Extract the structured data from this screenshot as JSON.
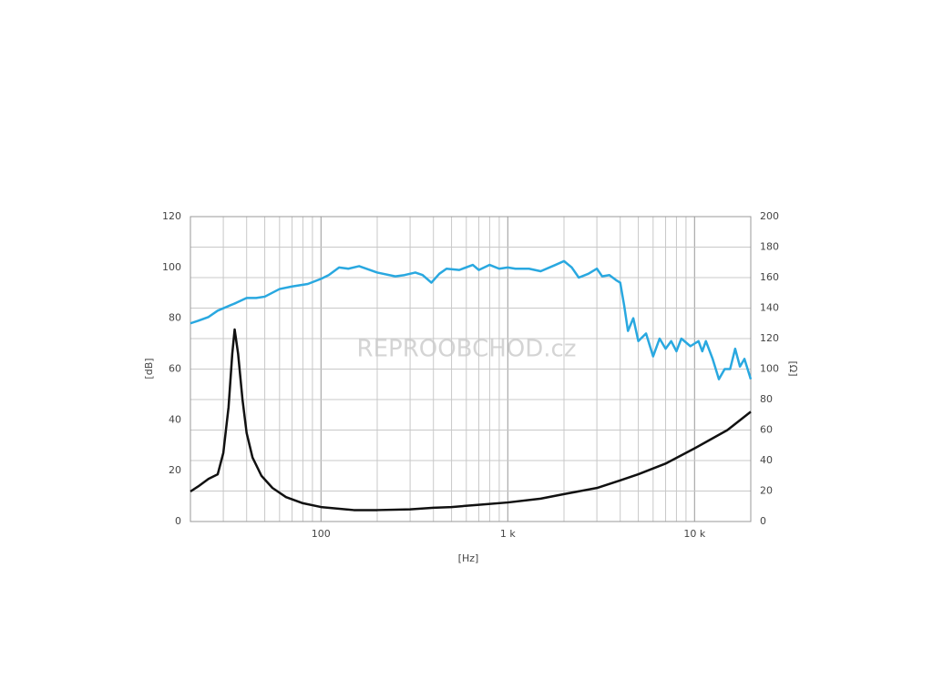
{
  "chart_data": {
    "type": "line",
    "log_x": true,
    "grid": true,
    "xlabel": "[Hz]",
    "ylabel": "[dB]",
    "y2label": "[Ω]",
    "watermark": "REPROOBCHOD.cz",
    "xlim": [
      20,
      20000
    ],
    "xticks": [
      100,
      {
        "value": 1000,
        "label": "1 k"
      },
      {
        "value": 10000,
        "label": "10 k"
      }
    ],
    "minor_xticks": [
      20,
      30,
      40,
      50,
      60,
      70,
      80,
      90,
      200,
      300,
      400,
      500,
      600,
      700,
      800,
      900,
      2000,
      3000,
      4000,
      5000,
      6000,
      7000,
      8000,
      9000
    ],
    "ylim": [
      0,
      120
    ],
    "yticks": [
      0,
      20,
      40,
      60,
      80,
      100,
      120
    ],
    "y2lim": [
      0,
      200
    ],
    "y2ticks": [
      0,
      20,
      40,
      60,
      80,
      100,
      120,
      140,
      160,
      180,
      200
    ],
    "series": [
      {
        "color": "#29a8e0",
        "axis": "y",
        "x": [
          20,
          22,
          25,
          28,
          35,
          40,
          45,
          50,
          60,
          70,
          85,
          100,
          110,
          125,
          140,
          160,
          200,
          250,
          280,
          320,
          350,
          390,
          430,
          470,
          550,
          650,
          700,
          800,
          900,
          1000,
          1100,
          1300,
          1500,
          1800,
          2000,
          2200,
          2400,
          2700,
          3000,
          3200,
          3500,
          3800,
          4000,
          4200,
          4400,
          4700,
          5000,
          5500,
          6000,
          6500,
          7000,
          7500,
          8000,
          8500,
          9500,
          10500,
          11000,
          11500,
          12500,
          13500,
          14500,
          15500,
          16500,
          17500,
          18500,
          20000
        ],
        "values": [
          78,
          79,
          80.5,
          83,
          86,
          88,
          88,
          88.5,
          91.5,
          92.5,
          93.5,
          95.5,
          97,
          100,
          99.5,
          100.5,
          98,
          96.5,
          97,
          98,
          97,
          94,
          97.5,
          99.5,
          99,
          101,
          99,
          101,
          99.5,
          100,
          99.5,
          99.5,
          98.5,
          101,
          102.5,
          100,
          96,
          97.5,
          99.5,
          96.5,
          97,
          95,
          94,
          85,
          75,
          80,
          71,
          74,
          65,
          72,
          68,
          71,
          67,
          72,
          69,
          71,
          67,
          71,
          64,
          56,
          60,
          60,
          68,
          61,
          64,
          56
        ]
      },
      {
        "color": "#111111",
        "axis": "y2",
        "x": [
          20,
          22,
          25,
          28,
          30,
          32,
          33.5,
          34.5,
          36,
          38,
          40,
          43,
          48,
          55,
          65,
          80,
          100,
          150,
          200,
          300,
          400,
          500,
          700,
          1000,
          1500,
          2000,
          3000,
          4000,
          5000,
          7000,
          10000,
          15000,
          20000
        ],
        "values": [
          19.7,
          23,
          28,
          31,
          45,
          75,
          110,
          126,
          110,
          80,
          58,
          42,
          30,
          22,
          16,
          12,
          9.5,
          7.5,
          7.5,
          8,
          9,
          9.5,
          11,
          12.5,
          15,
          18,
          22,
          27,
          31,
          38,
          48,
          60,
          72
        ]
      }
    ]
  }
}
